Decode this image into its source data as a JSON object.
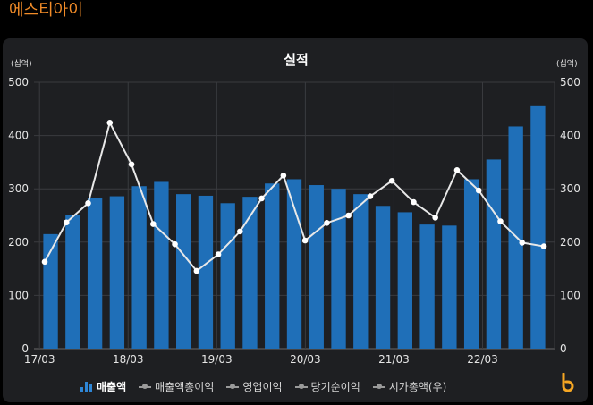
{
  "company_name": "에스티아이",
  "chart_data": {
    "type": "bar",
    "title": "실적",
    "y_unit_left": "(십억)",
    "y_unit_right": "(십억)",
    "ylim": [
      0,
      500
    ],
    "yticks": [
      0,
      100,
      200,
      300,
      400,
      500
    ],
    "grid": true,
    "x_tick_labels": [
      "17/03",
      "18/03",
      "19/03",
      "20/03",
      "21/03",
      "22/03"
    ],
    "x_tick_every": 4,
    "bar_series": {
      "name": "매출액",
      "color": "#1f6fb8",
      "values": [
        215,
        250,
        283,
        286,
        305,
        313,
        290,
        287,
        273,
        285,
        310,
        318,
        307,
        300,
        290,
        268,
        256,
        233,
        231,
        318,
        355,
        417,
        455
      ]
    },
    "line_series": {
      "name": "시가총액(우)",
      "color": "#e8e8e8",
      "values": [
        163,
        237,
        273,
        424,
        346,
        234,
        196,
        146,
        177,
        220,
        282,
        325,
        203,
        236,
        250,
        286,
        315,
        275,
        246,
        335,
        297,
        239,
        199,
        192
      ]
    },
    "legend": [
      {
        "label": "매출액",
        "active": true,
        "icon": "bar-chart-icon"
      },
      {
        "label": "매출액총이익",
        "active": false,
        "icon": "line-marker-icon"
      },
      {
        "label": "영업이익",
        "active": false,
        "icon": "line-marker-icon"
      },
      {
        "label": "당기순이익",
        "active": false,
        "icon": "line-marker-icon"
      },
      {
        "label": "시가총액(우)",
        "active": false,
        "icon": "line-marker-icon"
      }
    ],
    "legend_position": "bottom-center"
  },
  "brand": {
    "icon": "brand-b-logo-icon",
    "color": "#f5a623"
  }
}
